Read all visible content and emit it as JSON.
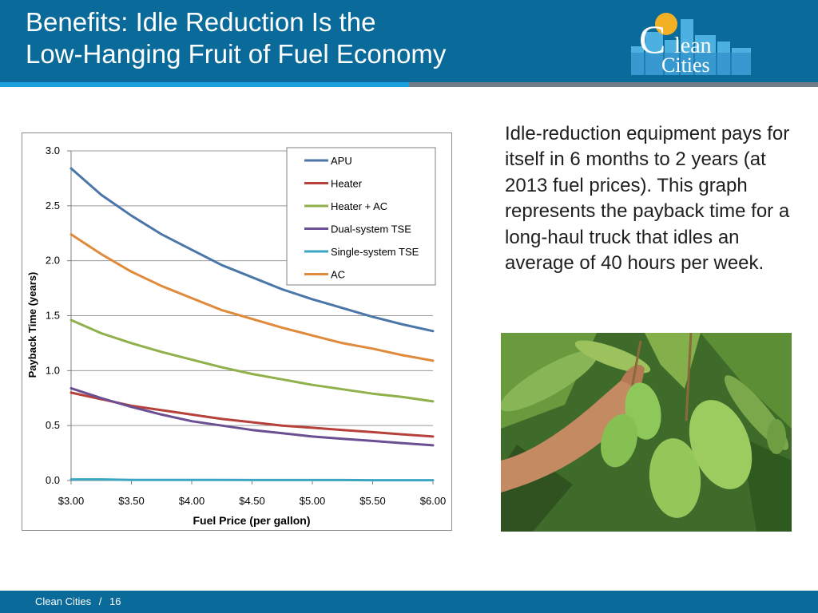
{
  "header": {
    "title_line1": "Benefits: Idle Reduction Is the",
    "title_line2": "Low-Hanging Fruit of Fuel Economy",
    "logo": {
      "word_top": "lean",
      "word_bottom": "Cities",
      "letter": "C"
    }
  },
  "body": {
    "text": "Idle-reduction equipment pays for itself in 6 months to 2 years (at 2013 fuel prices). This graph represents the payback time for a long-haul truck that idles an average of 40 hours per week."
  },
  "footer": {
    "org": "Clean Cities",
    "separator": "/",
    "page": "16"
  },
  "chart_data": {
    "type": "line",
    "title": "",
    "xlabel": "Fuel Price (per gallon)",
    "ylabel": "Payback Time (years)",
    "xlim": [
      3.0,
      6.0
    ],
    "ylim": [
      0,
      3.0
    ],
    "x": [
      3.0,
      3.25,
      3.5,
      3.75,
      4.0,
      4.25,
      4.5,
      4.75,
      5.0,
      5.25,
      5.5,
      5.75,
      6.0
    ],
    "x_tick_values": [
      3.0,
      3.5,
      4.0,
      4.5,
      5.0,
      5.5,
      6.0
    ],
    "x_tick_labels": [
      "$3.00",
      "$3.50",
      "$4.00",
      "$4.50",
      "$5.00",
      "$5.50",
      "$6.00"
    ],
    "y_tick_values": [
      0,
      0.5,
      1.0,
      1.5,
      2.0,
      2.5,
      3.0
    ],
    "y_tick_labels": [
      "0.0",
      "0.5",
      "1.0",
      "1.5",
      "2.0",
      "2.5",
      "3.0"
    ],
    "grid": true,
    "legend_position": "top-right",
    "series": [
      {
        "name": "APU",
        "color": "#4a76a8",
        "values": [
          2.84,
          2.6,
          2.41,
          2.24,
          2.1,
          1.96,
          1.85,
          1.74,
          1.65,
          1.57,
          1.49,
          1.42,
          1.36
        ]
      },
      {
        "name": "Heater",
        "color": "#b6413b",
        "values": [
          0.8,
          0.74,
          0.68,
          0.64,
          0.6,
          0.56,
          0.53,
          0.5,
          0.48,
          0.46,
          0.44,
          0.42,
          0.4
        ]
      },
      {
        "name": "Heater + AC",
        "color": "#8fb04a",
        "values": [
          1.46,
          1.34,
          1.25,
          1.17,
          1.1,
          1.03,
          0.97,
          0.92,
          0.87,
          0.83,
          0.79,
          0.76,
          0.72
        ]
      },
      {
        "name": "Dual-system TSE",
        "color": "#6b4f93",
        "values": [
          0.84,
          0.75,
          0.67,
          0.6,
          0.54,
          0.5,
          0.46,
          0.43,
          0.4,
          0.38,
          0.36,
          0.34,
          0.32
        ]
      },
      {
        "name": "Single-system TSE",
        "color": "#3aa6c4",
        "values": [
          0.01,
          0.01,
          0.005,
          0.005,
          0.005,
          0.005,
          0.004,
          0.004,
          0.004,
          0.004,
          0.003,
          0.003,
          0.003
        ]
      },
      {
        "name": "AC",
        "color": "#e08a3c",
        "values": [
          2.24,
          2.06,
          1.9,
          1.77,
          1.66,
          1.55,
          1.47,
          1.39,
          1.32,
          1.25,
          1.2,
          1.14,
          1.09
        ]
      }
    ]
  }
}
